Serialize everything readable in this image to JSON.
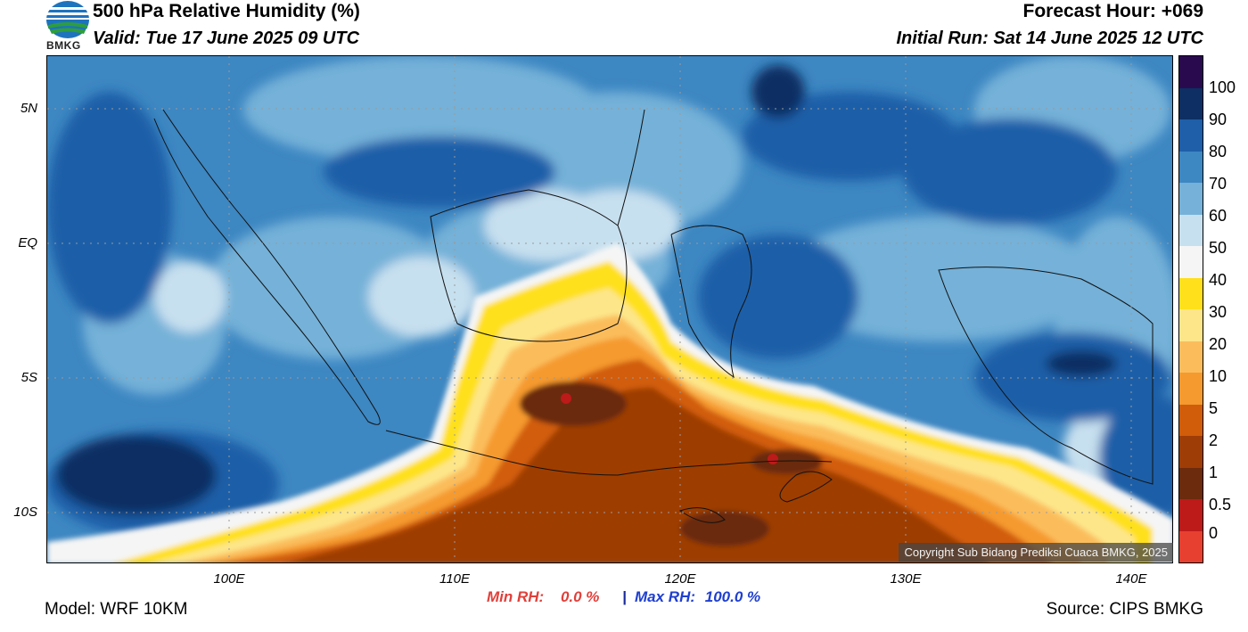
{
  "header": {
    "title": "500 hPa Relative Humidity (%)",
    "valid": "Valid: Tue 17 June 2025 09 UTC",
    "forecast_hour": "Forecast Hour: +069",
    "initial_run": "Initial Run: Sat 14 June 2025 12 UTC"
  },
  "logo": {
    "text": "BMKG"
  },
  "map": {
    "region": "Indonesia / Maritime Continent",
    "lat_ticks": [
      "5N",
      "EQ",
      "5S",
      "10S"
    ],
    "lon_ticks": [
      "100E",
      "110E",
      "120E",
      "130E",
      "140E"
    ],
    "grid": true
  },
  "colorbar": {
    "labels": [
      "100",
      "90",
      "80",
      "70",
      "60",
      "50",
      "40",
      "30",
      "20",
      "10",
      "5",
      "2",
      "1",
      "0.5",
      "0"
    ],
    "colors": [
      "#2a0a4e",
      "#0d2f63",
      "#1f5ea8",
      "#3d87c2",
      "#75b1d8",
      "#c7e0ef",
      "#f5f5f5",
      "#ffe01a",
      "#fde68a",
      "#fbbd5c",
      "#f59a2e",
      "#d15d0a",
      "#9e3d06",
      "#6b2b0c",
      "#bd1a1a",
      "#e84030"
    ]
  },
  "stats": {
    "min_label": "Min RH:",
    "min_value": "0.0 %",
    "separator": "|",
    "max_label": "Max RH:",
    "max_value": "100.0 %"
  },
  "copyright": "Copyright Sub Bidang Prediksi Cuaca BMKG, 2025",
  "footer": {
    "model": "Model: WRF 10KM",
    "source": "Source: CIPS BMKG"
  }
}
